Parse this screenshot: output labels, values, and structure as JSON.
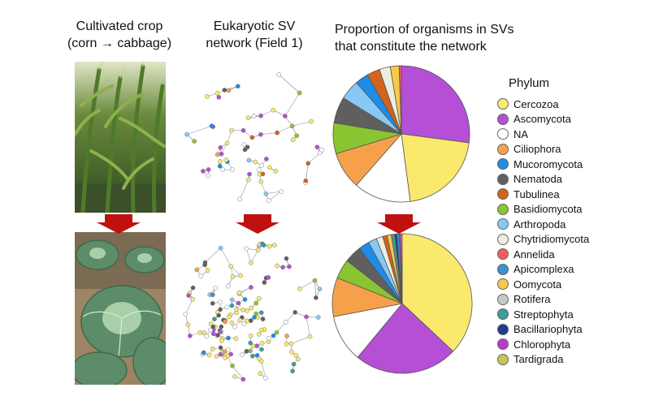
{
  "titles": {
    "col1": [
      "Cultivated crop",
      "(corn → cabbage)"
    ],
    "col2": [
      "Eukaryotic SV",
      "network (Field 1)"
    ],
    "col3": [
      "Proportion of organisms in SVs",
      "that constitute the network"
    ]
  },
  "legend": {
    "title": "Phylum",
    "items": [
      {
        "name": "Cercozoa",
        "color": "#fbe96d"
      },
      {
        "name": "Ascomycota",
        "color": "#b44fd6"
      },
      {
        "name": "NA",
        "color": "#ffffff"
      },
      {
        "name": "Ciliophora",
        "color": "#f6a14a"
      },
      {
        "name": "Mucoromycota",
        "color": "#1e8ce8"
      },
      {
        "name": "Nematoda",
        "color": "#5f5f5f"
      },
      {
        "name": "Tubulinea",
        "color": "#d2641c"
      },
      {
        "name": "Basidiomycota",
        "color": "#88c531"
      },
      {
        "name": "Arthropoda",
        "color": "#86c9f4"
      },
      {
        "name": "Chytridiomycota",
        "color": "#eeeedf"
      },
      {
        "name": "Annelida",
        "color": "#ef5d61"
      },
      {
        "name": "Apicomplexa",
        "color": "#3d93cc"
      },
      {
        "name": "Oomycota",
        "color": "#f8c84b"
      },
      {
        "name": "Rotifera",
        "color": "#c8c8c8"
      },
      {
        "name": "Streptophyta",
        "color": "#3c9d9a"
      },
      {
        "name": "Bacillariophyta",
        "color": "#203a8c"
      },
      {
        "name": "Chlorophyta",
        "color": "#bb3bd1"
      },
      {
        "name": "Tardigrada",
        "color": "#c4c653"
      }
    ]
  },
  "chart_data": [
    {
      "type": "pie",
      "title": "",
      "categories": [
        "Ascomycota",
        "Cercozoa",
        "NA",
        "Ciliophora",
        "Basidiomycota",
        "Nematoda",
        "Arthropoda",
        "Mucoromycota",
        "Tubulinea",
        "Chytridiomycota",
        "Oomycota",
        "Annelida"
      ],
      "values": [
        26,
        20,
        13,
        8.5,
        7,
        6,
        4.5,
        3,
        3,
        2.5,
        2,
        0.5
      ],
      "colors": [
        "#b44fd6",
        "#fbe96d",
        "#ffffff",
        "#f6a14a",
        "#88c531",
        "#5f5f5f",
        "#86c9f4",
        "#1e8ce8",
        "#d2641c",
        "#eeeedf",
        "#f8c84b",
        "#ef5d61"
      ]
    },
    {
      "type": "pie",
      "title": "",
      "categories": [
        "Cercozoa",
        "Ascomycota",
        "NA",
        "Ciliophora",
        "Basidiomycota",
        "Nematoda",
        "Mucoromycota",
        "Arthropoda",
        "Chytridiomycota",
        "Tubulinea",
        "Oomycota",
        "Streptophyta",
        "Bacillariophyta",
        "Apicomplexa",
        "Chlorophyta",
        "Tardigrada"
      ],
      "values": [
        37,
        24,
        11,
        9,
        4.5,
        4,
        2.5,
        2,
        1.5,
        1,
        1,
        0.8,
        0.5,
        0.5,
        0.4,
        0.3
      ],
      "colors": [
        "#fbe96d",
        "#b44fd6",
        "#ffffff",
        "#f6a14a",
        "#88c531",
        "#5f5f5f",
        "#1e8ce8",
        "#86c9f4",
        "#eeeedf",
        "#d2641c",
        "#f8c84b",
        "#3c9d9a",
        "#203a8c",
        "#3d93cc",
        "#bb3bd1",
        "#c4c653"
      ]
    }
  ],
  "networks": [
    {
      "color_mix": [
        "#ffffff",
        "#ffffff",
        "#ffffff",
        "#fbe96d",
        "#fbe96d",
        "#fbe96d",
        "#b44fd6",
        "#b44fd6",
        "#b44fd6",
        "#f6a14a",
        "#88c531",
        "#5f5f5f",
        "#1e8ce8",
        "#d2641c",
        "#86c9f4"
      ]
    },
    {
      "color_mix": [
        "#fbe96d",
        "#fbe96d",
        "#fbe96d",
        "#fbe96d",
        "#fbe96d",
        "#ffffff",
        "#ffffff",
        "#ffffff",
        "#b44fd6",
        "#b44fd6",
        "#b44fd6",
        "#f6a14a",
        "#88c531",
        "#5f5f5f",
        "#1e8ce8",
        "#3c9d9a",
        "#86c9f4"
      ]
    }
  ]
}
